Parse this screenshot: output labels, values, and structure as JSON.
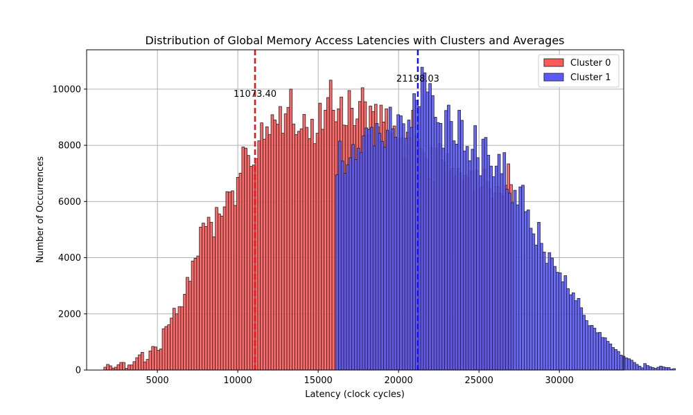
{
  "chart_data": {
    "type": "bar",
    "title": "Distribution of Global Memory Access Latencies with Clusters and Averages",
    "xlabel": "Latency (clock cycles)",
    "ylabel": "Number of Occurrences",
    "xlim": [
      600,
      34000
    ],
    "ylim": [
      0,
      11400
    ],
    "xticks": [
      5000,
      10000,
      15000,
      20000,
      25000,
      30000
    ],
    "yticks": [
      0,
      2000,
      4000,
      6000,
      8000,
      10000
    ],
    "grid": true,
    "legend_position": "top-right",
    "bin_width": 165,
    "series": [
      {
        "name": "Cluster 0",
        "color": "#ff5a5a",
        "bin_start": 1670,
        "counts": [
          100,
          200,
          150,
          70,
          100,
          190,
          270,
          270,
          60,
          180,
          180,
          300,
          440,
          540,
          630,
          290,
          380,
          680,
          840,
          820,
          700,
          750,
          1470,
          1550,
          1610,
          1850,
          2200,
          2000,
          2260,
          2250,
          2700,
          3300,
          3160,
          3880,
          3980,
          4060,
          5090,
          5230,
          5110,
          5440,
          5260,
          4740,
          5790,
          5560,
          5480,
          5810,
          6350,
          6340,
          6380,
          5860,
          6860,
          7010,
          7940,
          7900,
          7640,
          7250,
          7300,
          7520,
          8160,
          8800,
          8220,
          8660,
          8380,
          9090,
          8900,
          8750,
          9380,
          8430,
          9120,
          9350,
          10000,
          8760,
          8380,
          8500,
          8590,
          9100,
          8640,
          8240,
          8930,
          8060,
          8430,
          9500,
          8570,
          9250,
          9700,
          10320,
          9250,
          8840,
          9300,
          9720,
          8720,
          8700,
          9950,
          9320,
          8700,
          8940,
          9560,
          10050,
          9550,
          8390,
          9400,
          9200,
          9460,
          8650,
          9430,
          8830,
          9300,
          8500,
          8420,
          8690,
          8200,
          8250,
          8270,
          7550,
          8470,
          8260,
          9250,
          8340,
          8200,
          7880,
          7750,
          7520,
          6820,
          7920,
          6700,
          7900,
          8060,
          7480,
          7400,
          7710,
          7100,
          7180,
          6910,
          7180,
          7020,
          6780,
          6940,
          6830,
          7090,
          6400,
          7120,
          6450,
          6520,
          7160,
          6700,
          6450,
          6100,
          6310,
          6540,
          6290,
          6200,
          6580,
          7340,
          6600
        ]
      },
      {
        "name": "Cluster 1",
        "color": "#5a5aff",
        "bin_start": 16100,
        "counts": [
          6950,
          8150,
          7440,
          7000,
          7310,
          7560,
          8030,
          7500,
          7900,
          7740,
          8340,
          8620,
          8570,
          8640,
          7980,
          8780,
          8430,
          8140,
          7930,
          8540,
          9360,
          8590,
          8290,
          9090,
          9050,
          8770,
          8250,
          8900,
          8640,
          9840,
          9600,
          9380,
          10780,
          10580,
          9900,
          10200,
          9770,
          9000,
          8810,
          8780,
          7900,
          9240,
          9430,
          8850,
          8160,
          8040,
          9250,
          8890,
          7800,
          7960,
          7450,
          7860,
          8700,
          7560,
          6920,
          8220,
          8280,
          7650,
          7260,
          6880,
          7260,
          7680,
          6990,
          7740,
          6440,
          6300,
          5960,
          6400,
          5880,
          6520,
          6580,
          5640,
          5700,
          5050,
          4850,
          4450,
          5260,
          4510,
          4200,
          3800,
          4180,
          3990,
          3690,
          3480,
          3460,
          3140,
          3360,
          2900,
          2680,
          2750,
          2470,
          2550,
          2220,
          1950,
          1760,
          1580,
          1590,
          1490,
          1330,
          1340,
          1160,
          1150,
          1020,
          930,
          800,
          730,
          660,
          530,
          490,
          430,
          400,
          350,
          270,
          200,
          140,
          80,
          230,
          160,
          120,
          90,
          60,
          100,
          140,
          110,
          90,
          90,
          30,
          50
        ]
      }
    ],
    "averages": [
      {
        "series": "Cluster 0",
        "value": 11073.4,
        "label": "11073.40",
        "color": "#ee1111"
      },
      {
        "series": "Cluster 1",
        "value": 21198.03,
        "label": "21198.03",
        "color": "#1111ee"
      }
    ]
  }
}
